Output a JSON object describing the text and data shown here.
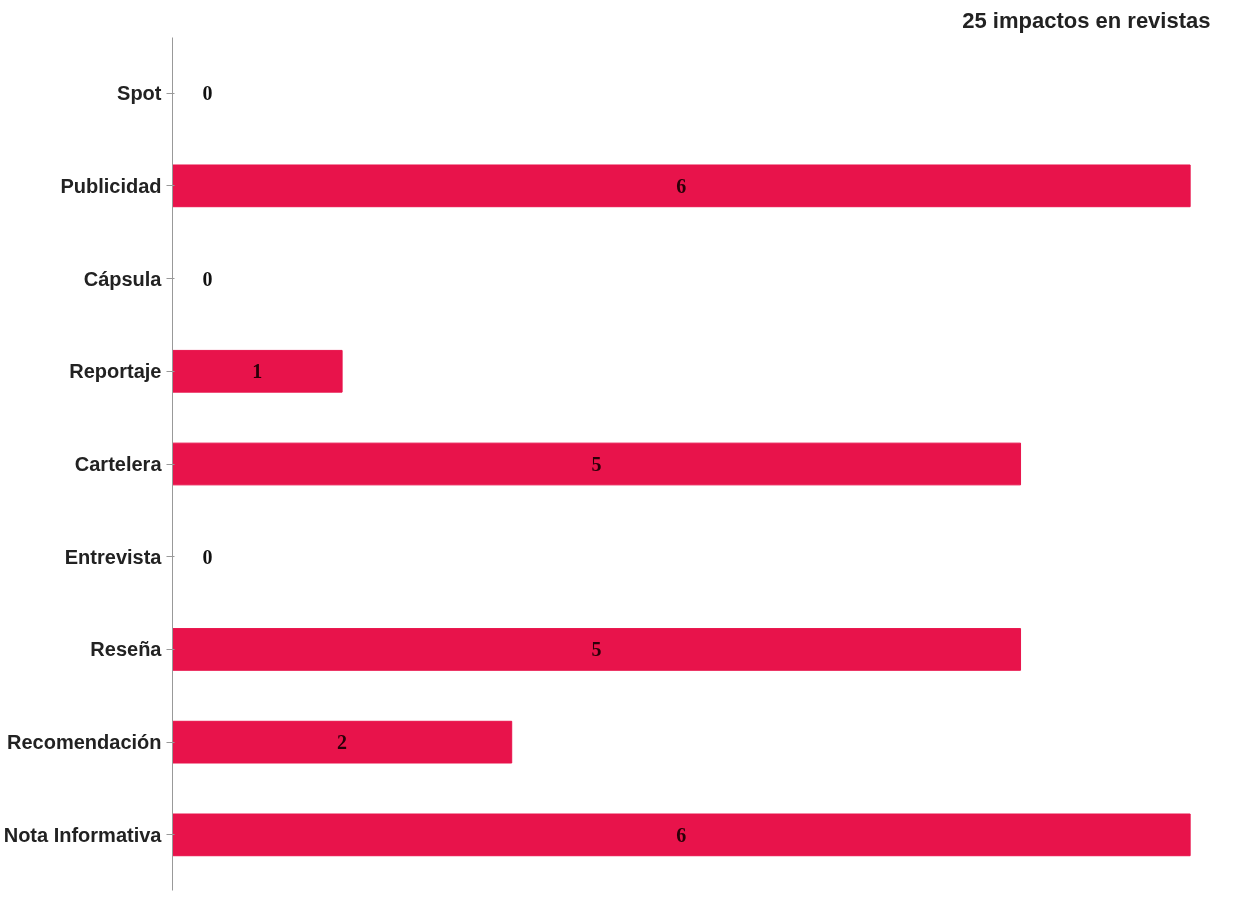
{
  "chart_data": {
    "type": "bar",
    "orientation": "horizontal",
    "title": "25 impactos en revistas",
    "categories": [
      "Spot",
      "Publicidad",
      "Cápsula",
      "Reportaje",
      "Cartelera",
      "Entrevista",
      "Reseña",
      "Recomendación",
      "Nota Informativa"
    ],
    "values": [
      0,
      6,
      0,
      1,
      5,
      0,
      5,
      2,
      6
    ],
    "color": "#e8134b",
    "data_labels": true
  }
}
